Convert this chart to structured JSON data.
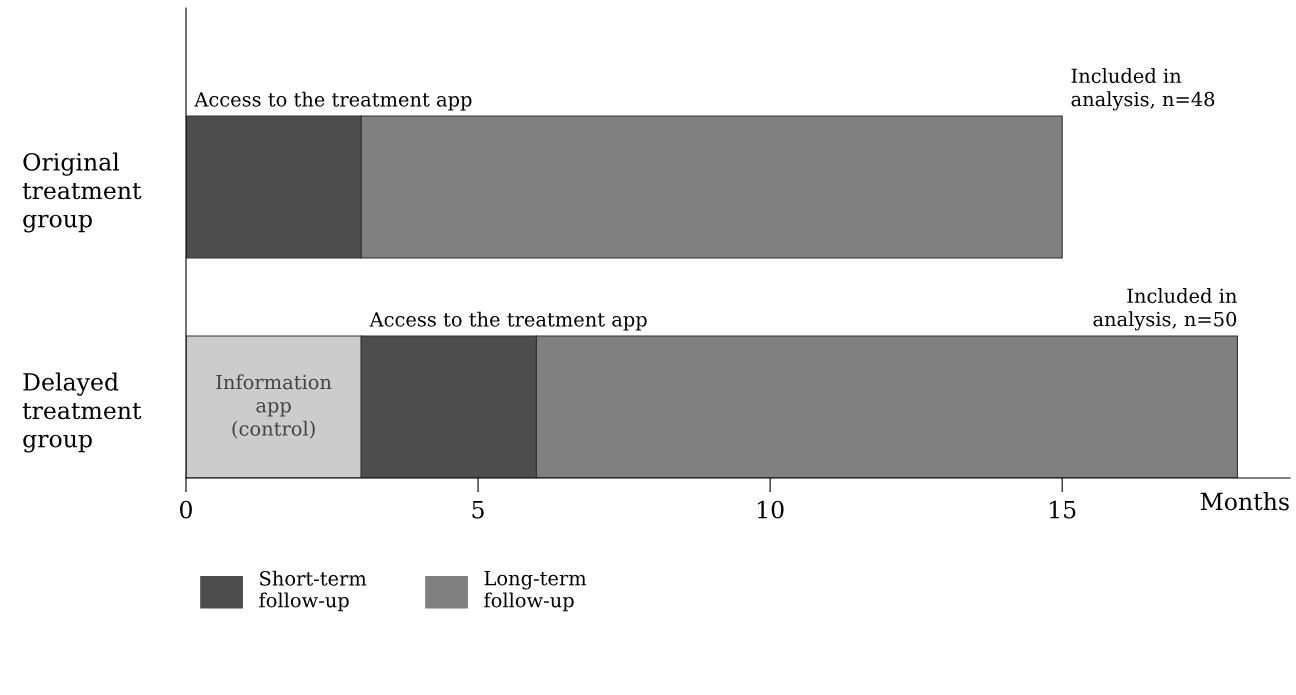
{
  "chart_data": {
    "type": "bar",
    "orientation": "horizontal",
    "stacked": true,
    "categories": [
      "Original treatment group",
      "Delayed treatment group"
    ],
    "series": [
      {
        "name": "Information app (control)",
        "color": "#cccccc",
        "values": [
          null,
          3
        ]
      },
      {
        "name": "Short-term follow-up",
        "color": "#4d4d4d",
        "values": [
          3,
          3
        ]
      },
      {
        "name": "Long-term follow-up",
        "color": "#808080",
        "values": [
          12,
          12
        ]
      }
    ],
    "xlim": [
      0,
      18.9
    ],
    "xticks": [
      0,
      5,
      10,
      15
    ],
    "xlabel": "Months",
    "annotations": [
      "Access to the treatment app",
      "Access to the treatment app",
      "Included in analysis, n=48",
      "Included in analysis, n=50"
    ],
    "grid": false,
    "legend": "bottom"
  }
}
